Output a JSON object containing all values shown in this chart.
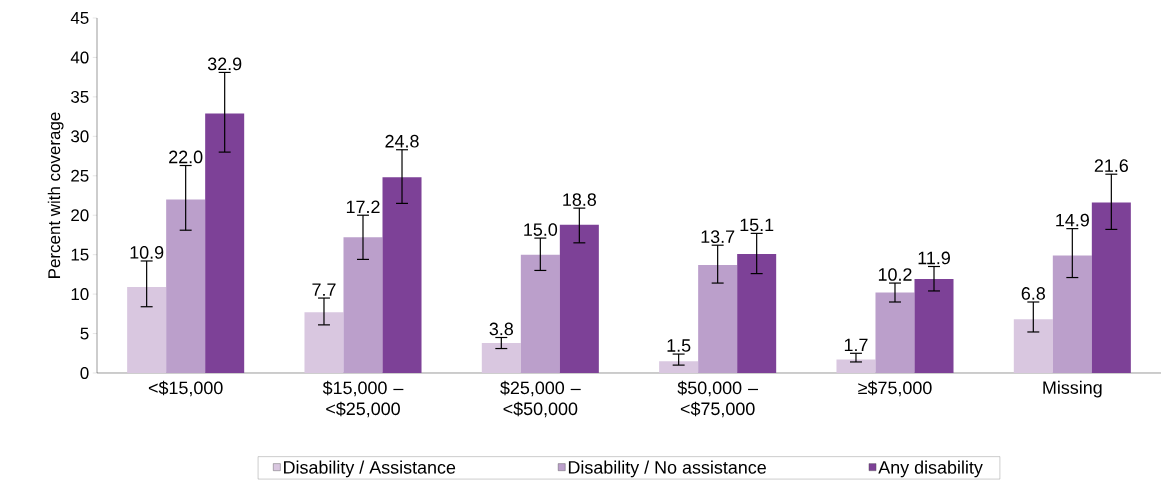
{
  "chart_data": {
    "type": "bar",
    "ylabel": "Percent with coverage",
    "categories": [
      "<$15,000",
      "$15,000 – <$25,000",
      "$25,000 – <$50,000",
      "$50,000 – <$75,000",
      "≥$75,000",
      "Missing"
    ],
    "series": [
      {
        "name": "Disability / Assistance",
        "color": "#d9c7e0",
        "values": [
          10.9,
          7.7,
          3.8,
          1.5,
          1.7,
          6.8
        ],
        "errors": [
          [
            8.4,
            14.2
          ],
          [
            6.1,
            9.5
          ],
          [
            3.1,
            4.5
          ],
          [
            1.0,
            2.4
          ],
          [
            1.4,
            2.5
          ],
          [
            5.2,
            9.0
          ]
        ],
        "value_labels": [
          "10.9",
          "7.7",
          "3.8",
          "1.5",
          "1.7",
          "6.8"
        ]
      },
      {
        "name": "Disability / No assistance",
        "color": "#bb9fcb",
        "values": [
          22.0,
          17.2,
          15.0,
          13.7,
          10.2,
          14.9
        ],
        "errors": [
          [
            18.1,
            26.3
          ],
          [
            14.4,
            20.0
          ],
          [
            13.0,
            17.1
          ],
          [
            11.4,
            16.2
          ],
          [
            9.0,
            11.4
          ],
          [
            12.1,
            18.3
          ]
        ],
        "value_labels": [
          "22.0",
          "17.2",
          "15.0",
          "13.7",
          "10.2",
          "14.9"
        ]
      },
      {
        "name": "Any disability",
        "color": "#7d4197",
        "values": [
          32.9,
          24.8,
          18.8,
          15.1,
          11.9,
          21.6
        ],
        "errors": [
          [
            28.0,
            38.1
          ],
          [
            21.5,
            28.3
          ],
          [
            16.5,
            20.9
          ],
          [
            12.6,
            17.7
          ],
          [
            10.4,
            13.5
          ],
          [
            18.2,
            25.2
          ]
        ],
        "value_labels": [
          "32.9",
          "24.8",
          "18.8",
          "15.1",
          "11.9",
          "21.6"
        ]
      }
    ],
    "ylim": [
      0,
      45
    ],
    "yticks": [
      0,
      5,
      10,
      15,
      20,
      25,
      30,
      35,
      40,
      45
    ],
    "legend": "bottom",
    "grid": false
  }
}
